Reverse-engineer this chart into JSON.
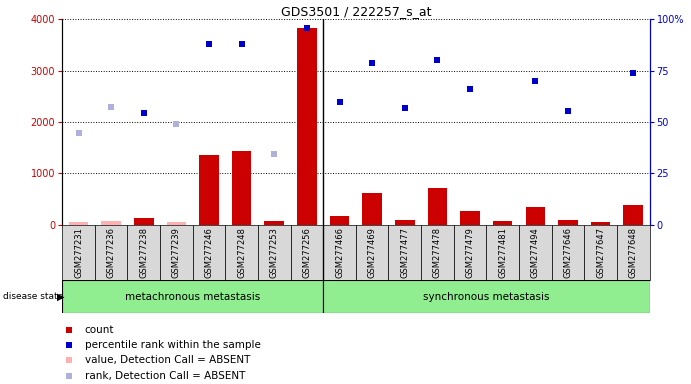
{
  "title": "GDS3501 / 222257_s_at",
  "samples": [
    "GSM277231",
    "GSM277236",
    "GSM277238",
    "GSM277239",
    "GSM277246",
    "GSM277248",
    "GSM277253",
    "GSM277256",
    "GSM277466",
    "GSM277469",
    "GSM277477",
    "GSM277478",
    "GSM277479",
    "GSM277481",
    "GSM277494",
    "GSM277646",
    "GSM277647",
    "GSM277648"
  ],
  "count_values": [
    50,
    70,
    120,
    60,
    1350,
    1430,
    80,
    3830,
    175,
    625,
    100,
    720,
    270,
    70,
    340,
    90,
    60,
    390
  ],
  "count_absent": [
    true,
    true,
    false,
    true,
    false,
    false,
    false,
    false,
    false,
    false,
    false,
    false,
    false,
    false,
    false,
    false,
    false,
    false
  ],
  "rank_values": [
    1780,
    2300,
    2170,
    1950,
    3520,
    3510,
    1380,
    3830,
    2380,
    3150,
    2280,
    3200,
    2650,
    null,
    2800,
    2210,
    null,
    2950
  ],
  "rank_absent": [
    true,
    true,
    false,
    true,
    false,
    false,
    true,
    false,
    false,
    false,
    false,
    false,
    false,
    true,
    false,
    false,
    true,
    false
  ],
  "group1_count": 8,
  "group1_label": "metachronous metastasis",
  "group2_label": "synchronous metastasis",
  "ylim_left": [
    0,
    4000
  ],
  "ylim_right": [
    0,
    100
  ],
  "yticks_left": [
    0,
    1000,
    2000,
    3000,
    4000
  ],
  "yticks_right": [
    0,
    25,
    50,
    75,
    100
  ],
  "ytick_labels_right": [
    "0",
    "25",
    "50",
    "75",
    "100%"
  ],
  "color_count": "#cc0000",
  "color_count_absent": "#ffb0b0",
  "color_rank": "#0000cc",
  "color_rank_absent": "#b0b0dd",
  "bg_color": "#d8d8d8",
  "group_bg": "#90ee90",
  "legend_items": [
    {
      "label": "count",
      "color": "#cc0000",
      "absent": false
    },
    {
      "label": "percentile rank within the sample",
      "color": "#0000cc",
      "absent": false
    },
    {
      "label": "value, Detection Call = ABSENT",
      "color": "#ffb0b0",
      "absent": true
    },
    {
      "label": "rank, Detection Call = ABSENT",
      "color": "#b0b0dd",
      "absent": true
    }
  ]
}
